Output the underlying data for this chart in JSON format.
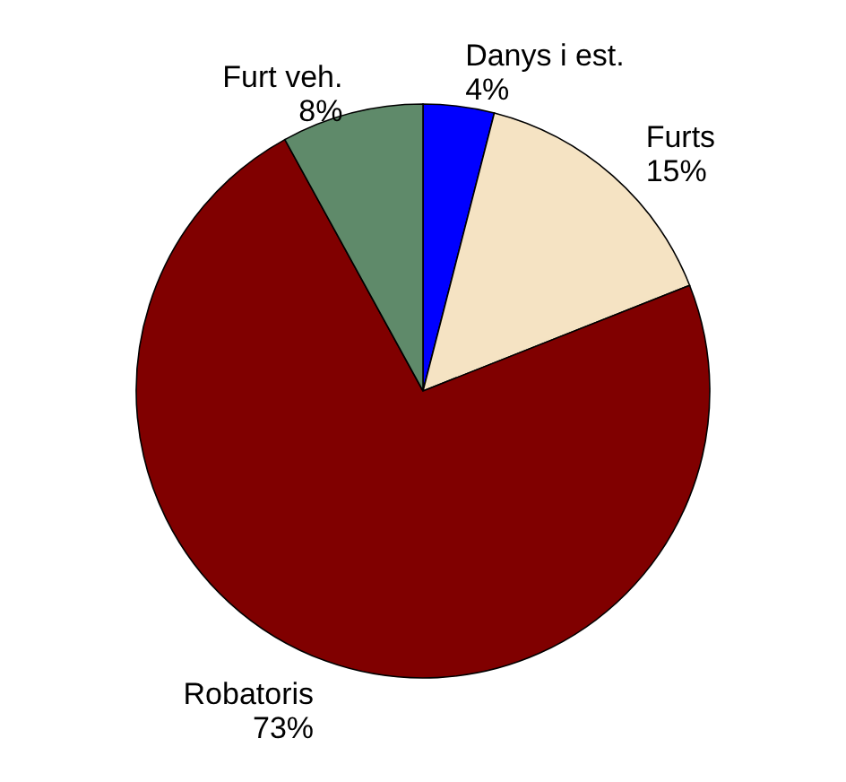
{
  "chart_data": {
    "type": "pie",
    "categories": [
      "Danys i est.",
      "Furts",
      "Robatoris",
      "Furt veh."
    ],
    "values": [
      4,
      15,
      73,
      8
    ],
    "colors": [
      "#0000ff",
      "#f5e3c3",
      "#800000",
      "#5f8a6a"
    ],
    "value_labels": [
      "4%",
      "15%",
      "73%",
      "8%"
    ]
  }
}
